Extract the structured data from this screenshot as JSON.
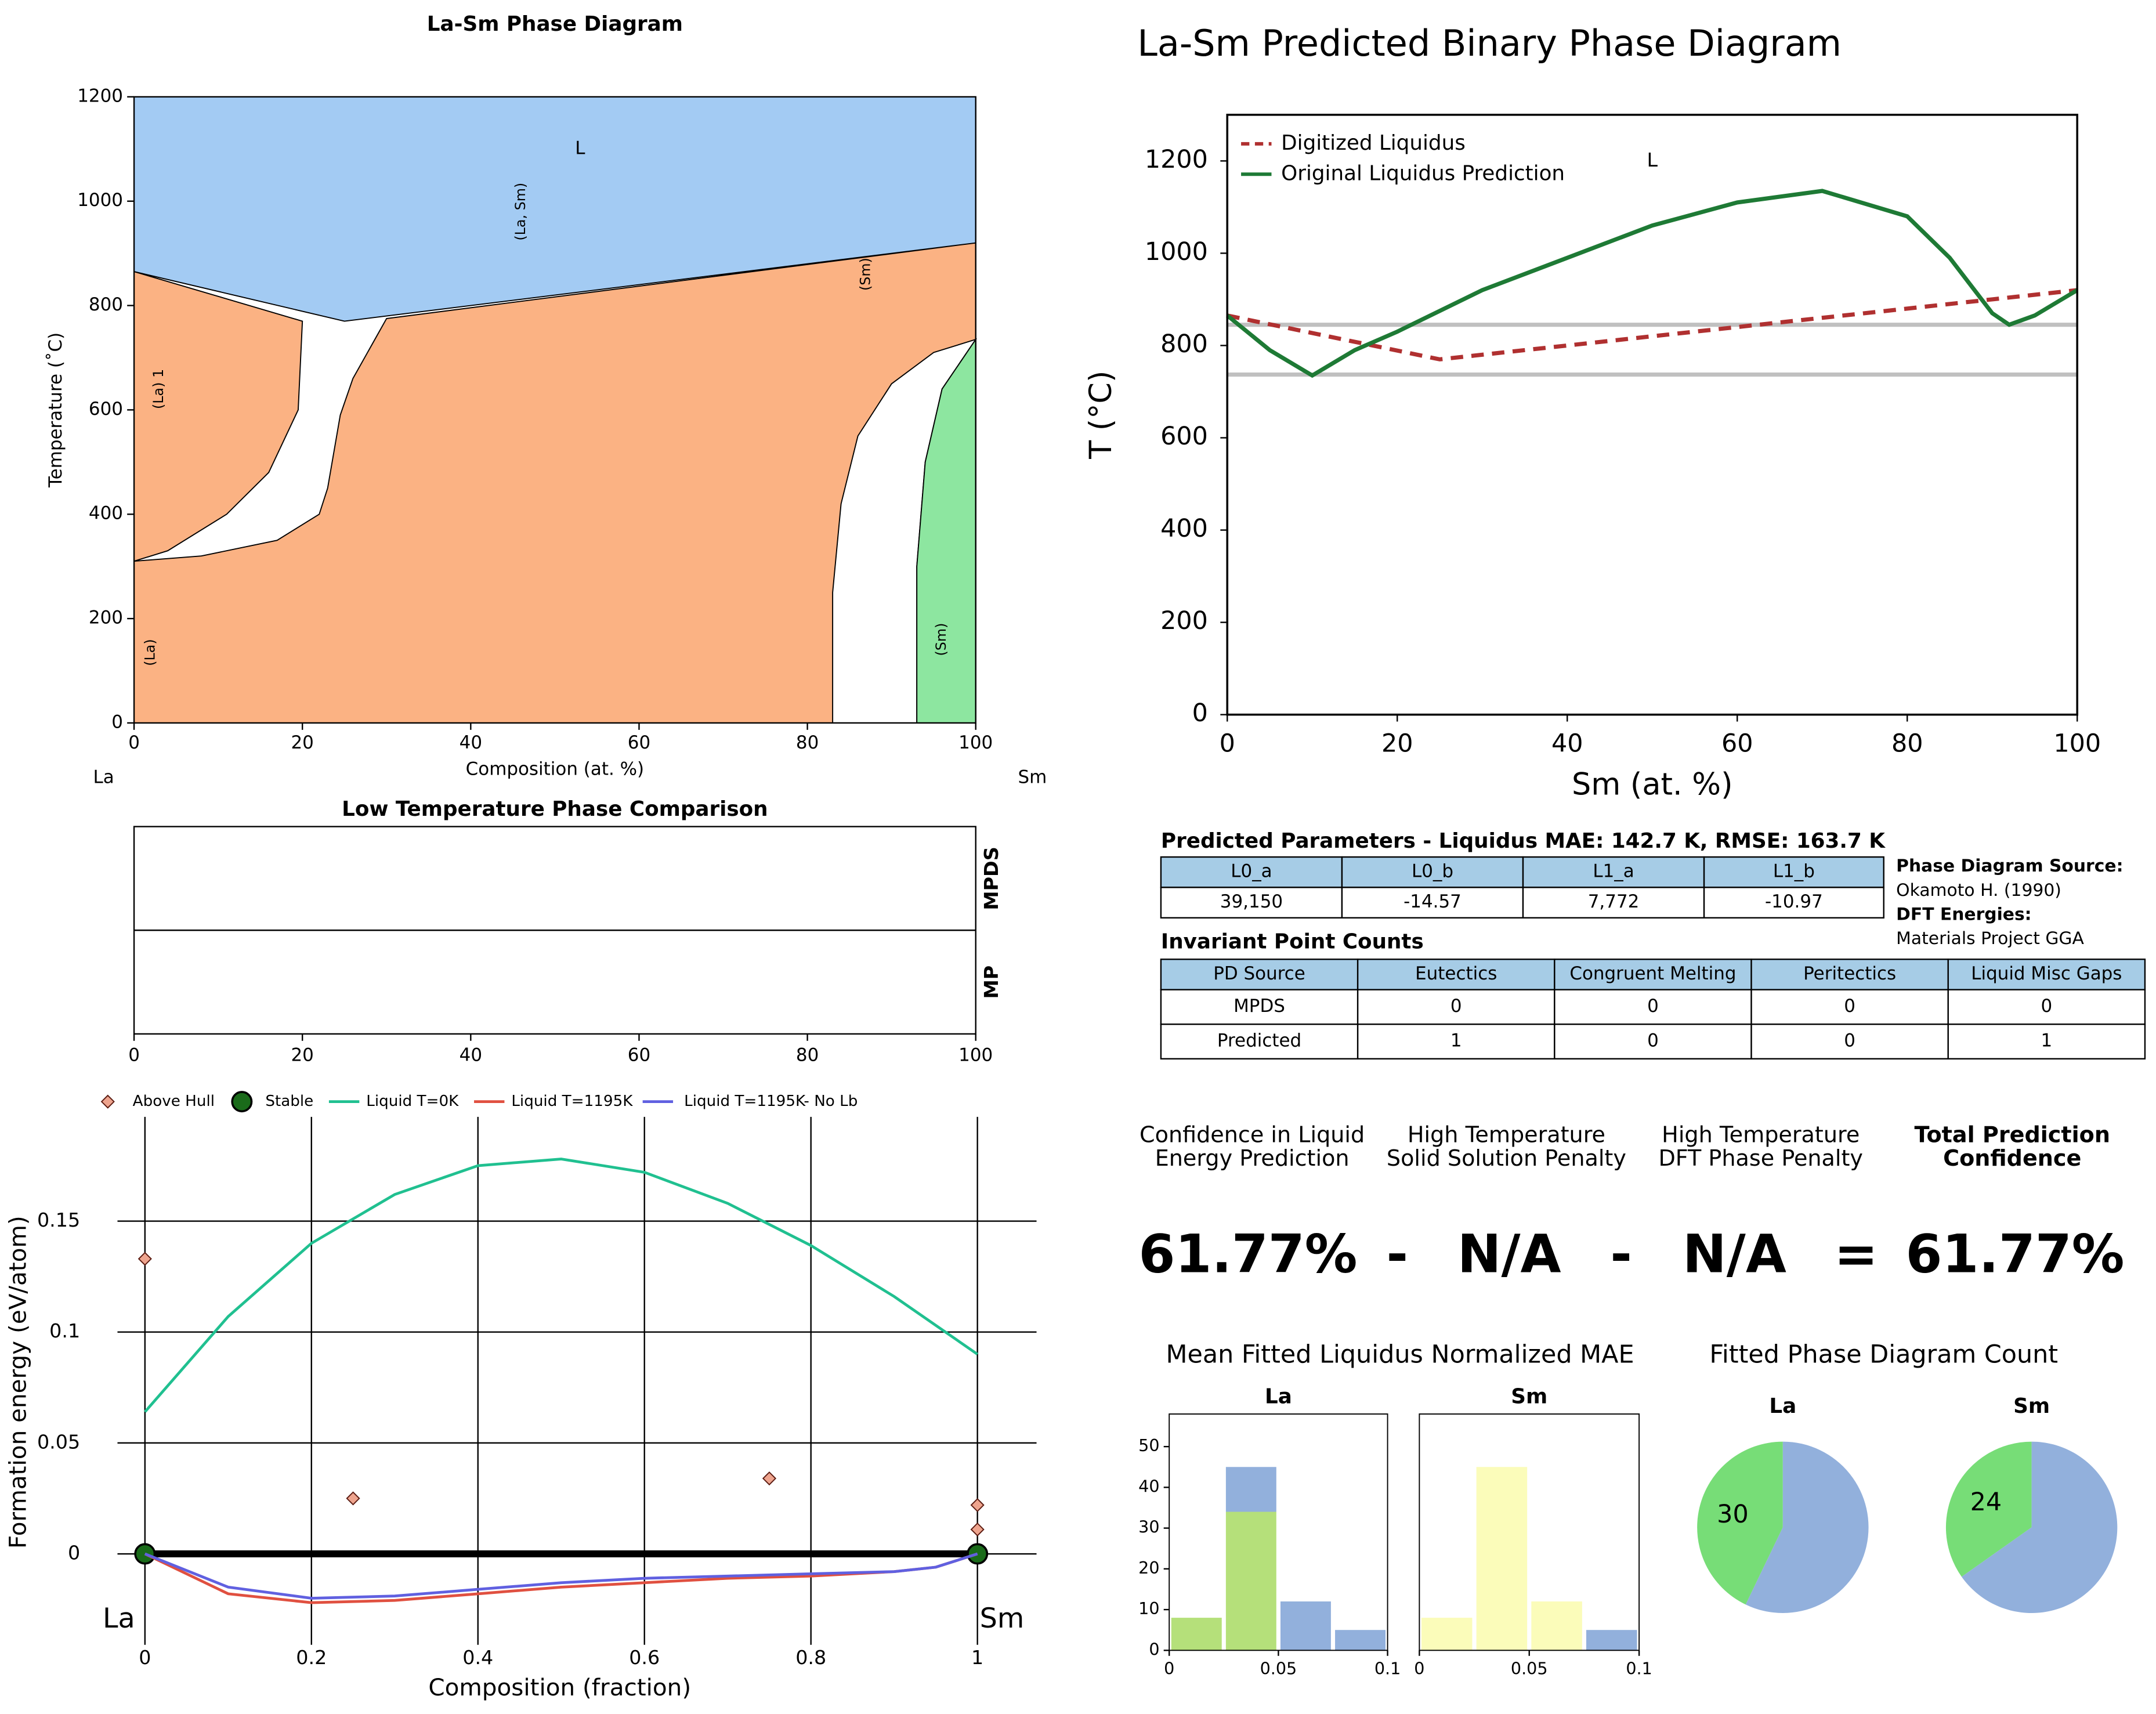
{
  "chart_data": [
    {
      "type": "phase_diagram",
      "title": "La-Sm Phase Diagram",
      "xlabel": "Composition (at. %)",
      "ylabel": "Temperature (˚C)",
      "left_label": "La",
      "right_label": "Sm",
      "xlim": [
        0,
        100
      ],
      "ylim": [
        0,
        1200
      ],
      "xticks": [
        0,
        20,
        40,
        60,
        80,
        100
      ],
      "yticks": [
        0,
        200,
        400,
        600,
        800,
        1000,
        1200
      ],
      "regions": [
        {
          "color": "#fbb283",
          "x": [
            0,
            100,
            100,
            25,
            0
          ],
          "y": [
            0,
            0,
            920,
            770,
            865
          ]
        },
        {
          "color": "#a3cbf3",
          "x": [
            0,
            25,
            100,
            100,
            0
          ],
          "y": [
            865,
            770,
            920,
            1200,
            1200
          ]
        },
        {
          "color": "#ffffff",
          "x": [
            0,
            25,
            100,
            30,
            26,
            24.5,
            23,
            22,
            17,
            8,
            0,
            4,
            11,
            16,
            19.5,
            20
          ],
          "y": [
            865,
            770,
            920,
            775,
            660,
            590,
            450,
            400,
            350,
            320,
            310,
            330,
            400,
            480,
            600,
            770
          ]
        },
        {
          "color": "#ffffff",
          "x": [
            83,
            83,
            84,
            86,
            90,
            95,
            100,
            96,
            94,
            93,
            93
          ],
          "y": [
            0,
            250,
            420,
            550,
            650,
            710,
            735,
            640,
            500,
            300,
            0
          ]
        },
        {
          "color": "#8de6a0",
          "x": [
            93,
            93,
            94,
            96,
            100,
            100
          ],
          "y": [
            0,
            300,
            500,
            640,
            735,
            0
          ]
        }
      ],
      "annotations": [
        {
          "text": "L",
          "x": 53,
          "y": 1100,
          "rotated": false
        },
        {
          "text": "(La, Sm)",
          "x": 46,
          "y": 980,
          "rotated": true
        },
        {
          "text": "(Sm)",
          "x": 87,
          "y": 860,
          "rotated": true
        },
        {
          "text": "(La) 1",
          "x": 3,
          "y": 640,
          "rotated": true
        },
        {
          "text": "(La)",
          "x": 2,
          "y": 135,
          "rotated": true
        },
        {
          "text": "(Sm)",
          "x": 96,
          "y": 160,
          "rotated": true
        }
      ]
    },
    {
      "type": "line",
      "title": "La-Sm Predicted Binary Phase Diagram",
      "xlabel": "Sm (at. %)",
      "ylabel": "T (°C)",
      "xlim": [
        0,
        100
      ],
      "ylim": [
        0,
        1300
      ],
      "xticks": [
        0,
        20,
        40,
        60,
        80,
        100
      ],
      "yticks": [
        0,
        200,
        400,
        600,
        800,
        1000,
        1200
      ],
      "hlines": [
        845,
        737
      ],
      "hline_color": "#c0c0c0",
      "annotations": [
        {
          "text": "L",
          "x": 50,
          "y": 1200
        }
      ],
      "series": [
        {
          "name": "Digitized Liquidus",
          "color": "#b03030",
          "dash": true,
          "x": [
            0,
            25,
            100
          ],
          "values": [
            865,
            770,
            920
          ]
        },
        {
          "name": "Original Liquidus Prediction",
          "color": "#1e7a35",
          "dash": false,
          "x": [
            0,
            5,
            10,
            15,
            20,
            30,
            40,
            50,
            60,
            70,
            80,
            85,
            90,
            92,
            95,
            100
          ],
          "values": [
            865,
            790,
            735,
            790,
            830,
            920,
            990,
            1060,
            1110,
            1135,
            1080,
            990,
            870,
            845,
            865,
            920
          ]
        }
      ]
    },
    {
      "type": "strip",
      "title": "Low Temperature Phase Comparison",
      "rows": [
        "MPDS",
        "MP"
      ],
      "xlim": [
        0,
        100
      ],
      "xticks": [
        0,
        20,
        40,
        60,
        80,
        100
      ]
    },
    {
      "type": "scatter",
      "xlabel": "Composition (fraction)",
      "ylabel": "Formation energy (eV/atom)",
      "left_label": "La",
      "right_label": "Sm",
      "xlim": [
        -0.033,
        1.071
      ],
      "ylim": [
        -0.041,
        0.197
      ],
      "xticks": [
        0,
        0.2,
        0.4,
        0.6,
        0.8,
        1
      ],
      "yticks": [
        0,
        0.05,
        0.1,
        0.15
      ],
      "series": [
        {
          "name": "Above Hull",
          "kind": "diamond",
          "color": "#eea48e",
          "x": [
            0,
            0.25,
            0.75,
            1,
            1
          ],
          "values": [
            0.133,
            0.025,
            0.034,
            0.022,
            0.011
          ]
        },
        {
          "name": "Stable",
          "kind": "hull",
          "color": "#1a6b1a",
          "x": [
            0,
            1
          ],
          "values": [
            0,
            0
          ]
        },
        {
          "name": "Liquid T=0K",
          "kind": "line",
          "color": "#20c090",
          "x": [
            0,
            0.1,
            0.2,
            0.3,
            0.4,
            0.5,
            0.6,
            0.7,
            0.8,
            0.9,
            1
          ],
          "values": [
            0.064,
            0.107,
            0.14,
            0.162,
            0.175,
            0.178,
            0.172,
            0.158,
            0.139,
            0.116,
            0.09
          ]
        },
        {
          "name": "Liquid T=1195K",
          "kind": "line",
          "color": "#e05040",
          "x": [
            0,
            0.1,
            0.2,
            0.3,
            0.4,
            0.5,
            0.6,
            0.7,
            0.8,
            0.9,
            0.95,
            1
          ],
          "values": [
            0,
            -0.018,
            -0.022,
            -0.021,
            -0.018,
            -0.015,
            -0.013,
            -0.011,
            -0.01,
            -0.008,
            -0.006,
            0
          ]
        },
        {
          "name": "Liquid T=1195K- No Lb",
          "kind": "line",
          "color": "#6060e0",
          "x": [
            0,
            0.1,
            0.2,
            0.3,
            0.4,
            0.5,
            0.6,
            0.7,
            0.8,
            0.9,
            0.95,
            1
          ],
          "values": [
            0,
            -0.015,
            -0.02,
            -0.019,
            -0.016,
            -0.013,
            -0.011,
            -0.01,
            -0.009,
            -0.008,
            -0.006,
            0
          ]
        }
      ]
    },
    {
      "type": "histogram",
      "title": "Mean Fitted Liquidus Normalized MAE",
      "panels": [
        {
          "title": "La",
          "bins": [
            0,
            0.025,
            0.05,
            0.075,
            0.1
          ],
          "xlim": [
            0,
            0.1
          ],
          "xticks": [
            0,
            0.05,
            0.1
          ],
          "ylim": [
            0,
            58
          ],
          "yticks": [
            0,
            10,
            20,
            30,
            40,
            50
          ],
          "series": [
            {
              "color": "#b5e07a",
              "values": [
                8,
                34,
                0,
                0
              ]
            },
            {
              "color": "#92b0dc",
              "values": [
                0,
                11,
                12,
                5
              ]
            }
          ]
        },
        {
          "title": "Sm",
          "bins": [
            0,
            0.025,
            0.05,
            0.075,
            0.1
          ],
          "xlim": [
            0,
            0.1
          ],
          "xticks": [
            0,
            0.05,
            0.1
          ],
          "ylim": [
            0,
            58
          ],
          "series": [
            {
              "color": "#fbfcba",
              "values": [
                8,
                45,
                12,
                0
              ]
            },
            {
              "color": "#92b0dc",
              "values": [
                0,
                0,
                0,
                5
              ]
            }
          ]
        }
      ]
    },
    {
      "type": "pie",
      "title": "Fitted Phase Diagram Count",
      "panels": [
        {
          "title": "La",
          "values": [
            30,
            40
          ],
          "value_labels": [
            "30",
            null
          ],
          "colors": [
            "#77dd77",
            "#92b0dc"
          ]
        },
        {
          "title": "Sm",
          "values": [
            24,
            45
          ],
          "value_labels": [
            "24",
            null
          ],
          "colors": [
            "#77dd77",
            "#92b0dc"
          ]
        }
      ]
    }
  ],
  "parameters": {
    "title": "Predicted Parameters - Liquidus MAE: 142.7 K, RMSE: 163.7 K",
    "headers": [
      "L0_a",
      "L0_b",
      "L1_a",
      "L1_b"
    ],
    "rows": [
      [
        "39,150",
        "-14.57",
        "7,772",
        "-10.97"
      ]
    ]
  },
  "sources": [
    "Phase Diagram Source:",
    "Okamoto H. (1990)",
    "DFT Energies:",
    "Materials Project GGA"
  ],
  "invariants": {
    "title": "Invariant Point Counts",
    "headers": [
      "PD Source",
      "Eutectics",
      "Congruent Melting",
      "Peritectics",
      "Liquid Misc Gaps"
    ],
    "rows": [
      [
        "MPDS",
        "0",
        "0",
        "0",
        "0"
      ],
      [
        "Predicted",
        "1",
        "0",
        "0",
        "1"
      ]
    ]
  },
  "confidence": {
    "headers": [
      [
        "Confidence in Liquid",
        "Energy Prediction"
      ],
      [
        "High Temperature",
        "Solid Solution Penalty"
      ],
      [
        "High Temperature",
        "DFT Phase Penalty"
      ],
      [
        "Total Prediction",
        "Confidence"
      ]
    ],
    "equation": [
      "61.77%",
      "-",
      "N/A",
      "-",
      "N/A",
      "=",
      "61.77%"
    ]
  }
}
